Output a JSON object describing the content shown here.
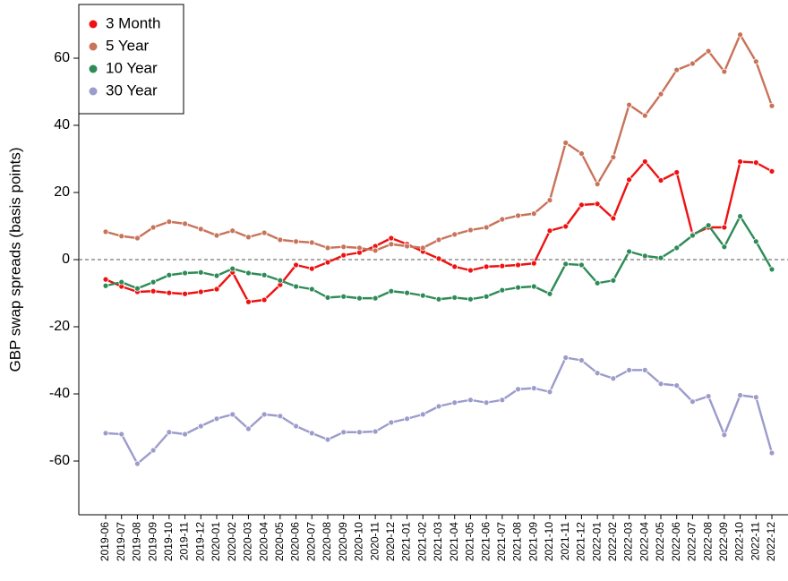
{
  "chart_data": {
    "type": "line",
    "y_label": "GBP swap spreads (basis points)",
    "categories": [
      "2019-06",
      "2019-07",
      "2019-08",
      "2019-09",
      "2019-10",
      "2019-11",
      "2019-12",
      "2020-01",
      "2020-02",
      "2020-03",
      "2020-04",
      "2020-05",
      "2020-06",
      "2020-07",
      "2020-08",
      "2020-09",
      "2020-10",
      "2020-11",
      "2020-12",
      "2021-01",
      "2021-02",
      "2021-03",
      "2021-04",
      "2021-05",
      "2021-06",
      "2021-07",
      "2021-08",
      "2021-09",
      "2021-10",
      "2021-11",
      "2021-12",
      "2022-01",
      "2022-02",
      "2022-03",
      "2022-04",
      "2022-05",
      "2022-06",
      "2022-07",
      "2022-08",
      "2022-09",
      "2022-10",
      "2022-11",
      "2022-12"
    ],
    "series": [
      {
        "name": "3 Month",
        "color": "#ee1111",
        "values": [
          -5.9,
          -8,
          -9.6,
          -9.4,
          -9.9,
          -10.2,
          -9.6,
          -8.8,
          -3.8,
          -12.6,
          -12,
          -7.5,
          -1.6,
          -2.7,
          -0.8,
          1.3,
          2.1,
          4,
          6.4,
          4.6,
          2.4,
          0.3,
          -2.1,
          -3.2,
          -2.1,
          -1.9,
          -1.6,
          -1.1,
          8.6,
          9.9,
          16.3,
          16.6,
          12.3,
          23.8,
          29.2,
          23.6,
          26,
          7.5,
          9.6,
          9.6,
          29.2,
          28.9,
          26.3
        ]
      },
      {
        "name": "5 Year",
        "color": "#c8735a",
        "values": [
          8.3,
          7,
          6.4,
          9.6,
          11.3,
          10.7,
          9.1,
          7.2,
          8.6,
          6.7,
          8,
          5.9,
          5.4,
          5.1,
          3.5,
          3.8,
          3.5,
          2.7,
          4.6,
          4,
          3.5,
          5.9,
          7.5,
          8.8,
          9.6,
          12,
          13.1,
          13.7,
          17.7,
          34.8,
          31.6,
          22.5,
          30.5,
          46.1,
          42.9,
          49.3,
          56.5,
          58.4,
          62.1,
          56,
          67,
          59,
          45.8
        ]
      },
      {
        "name": "10 Year",
        "color": "#2e8b57",
        "values": [
          -7.8,
          -6.7,
          -8.6,
          -6.7,
          -4.6,
          -4,
          -3.8,
          -4.8,
          -2.7,
          -4,
          -4.6,
          -6.2,
          -8,
          -8.8,
          -11.3,
          -11,
          -11.5,
          -11.5,
          -9.4,
          -9.9,
          -10.7,
          -11.8,
          -11.3,
          -11.8,
          -11,
          -9.1,
          -8.3,
          -8,
          -10.2,
          -1.3,
          -1.6,
          -7,
          -6.2,
          2.4,
          1.1,
          0.5,
          3.5,
          7.2,
          10.2,
          3.8,
          12.9,
          5.4,
          -2.9
        ]
      },
      {
        "name": "30 Year",
        "color": "#9c9ccc",
        "values": [
          -51.7,
          -52,
          -60.8,
          -56.8,
          -51.4,
          -52,
          -49.6,
          -47.4,
          -46.1,
          -50.4,
          -46.1,
          -46.6,
          -49.6,
          -51.7,
          -53.6,
          -51.4,
          -51.4,
          -51.2,
          -48.5,
          -47.4,
          -46.1,
          -43.7,
          -42.6,
          -41.8,
          -42.6,
          -41.8,
          -38.6,
          -38.3,
          -39.4,
          -29.2,
          -30,
          -33.8,
          -35.4,
          -32.9,
          -32.9,
          -37,
          -37.5,
          -42.3,
          -40.7,
          -52.2,
          -40.4,
          -41,
          -57.6
        ]
      }
    ],
    "ylim": [
      -76,
      76
    ],
    "yticks": [
      -60,
      -40,
      -20,
      0,
      20,
      40,
      60
    ],
    "hline": 0,
    "legend": "top-left"
  }
}
